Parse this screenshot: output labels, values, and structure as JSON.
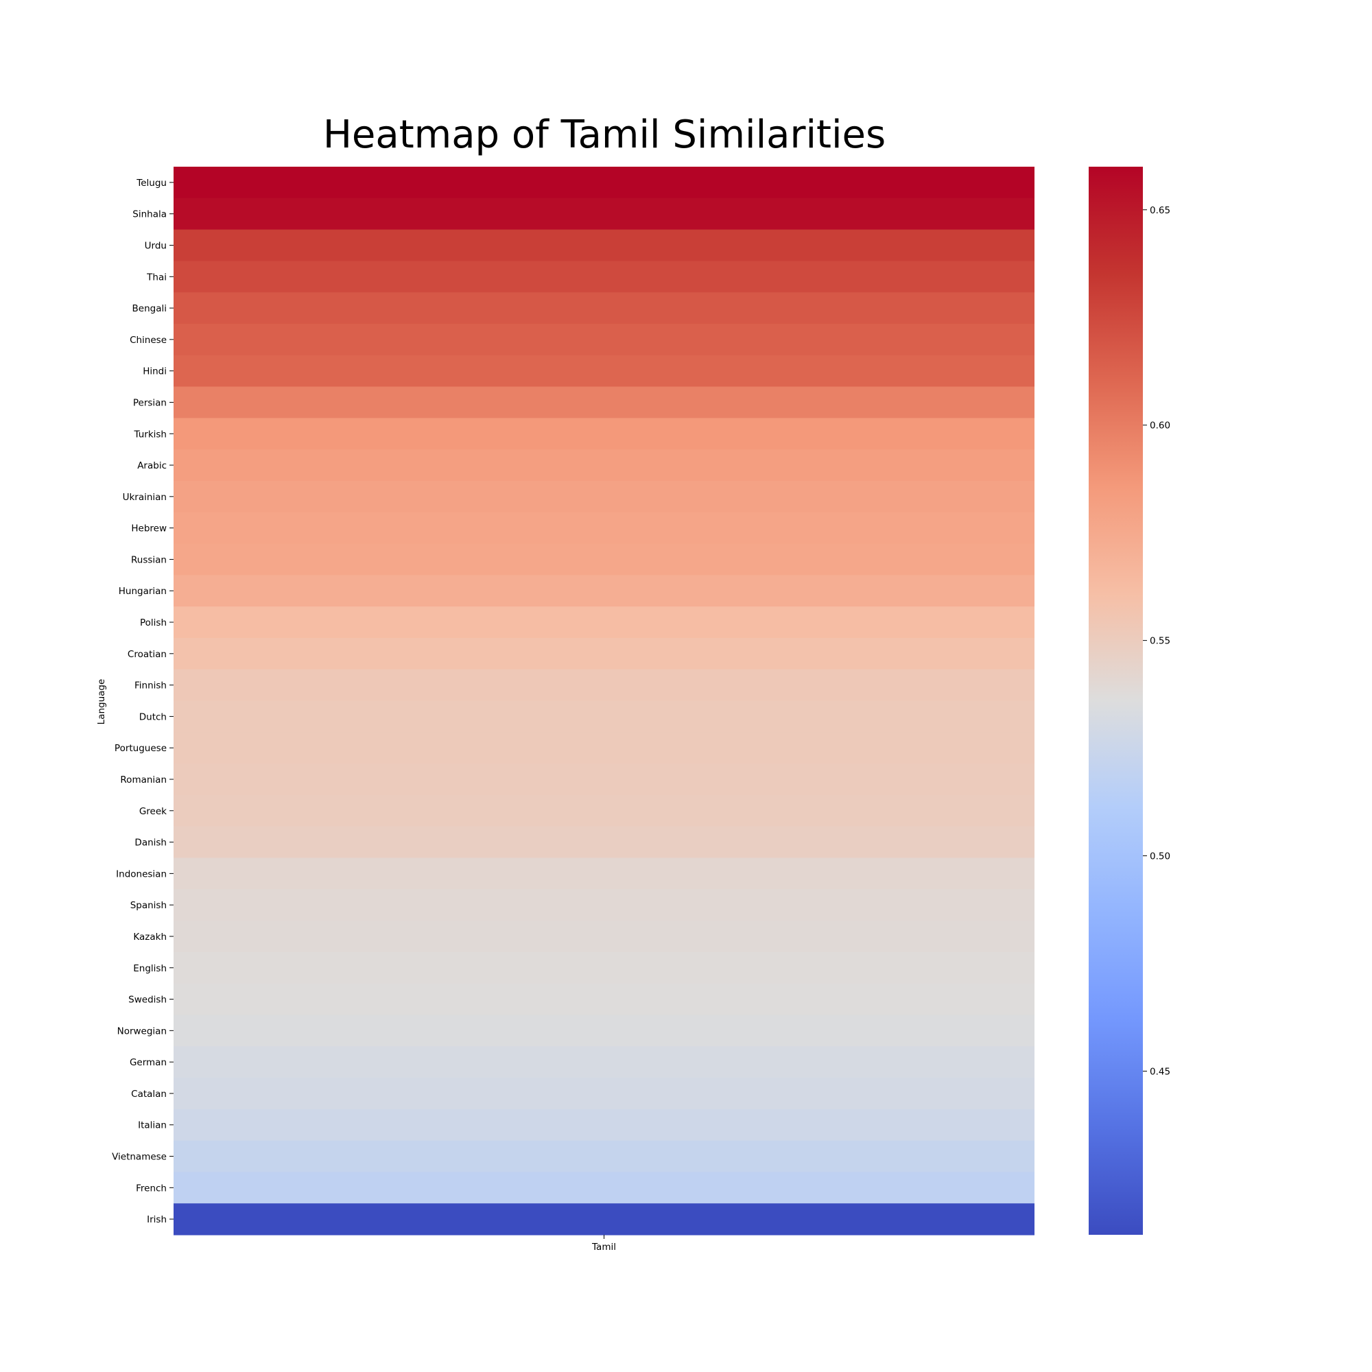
{
  "chart_data": {
    "type": "heatmap",
    "title": "Heatmap of Tamil Similarities",
    "xlabel": "",
    "ylabel": "Language",
    "columns": [
      "Tamil"
    ],
    "rows": [
      "Telugu",
      "Sinhala",
      "Urdu",
      "Thai",
      "Bengali",
      "Chinese",
      "Hindi",
      "Persian",
      "Turkish",
      "Arabic",
      "Ukrainian",
      "Hebrew",
      "Russian",
      "Hungarian",
      "Polish",
      "Croatian",
      "Finnish",
      "Dutch",
      "Portuguese",
      "Romanian",
      "Greek",
      "Danish",
      "Indonesian",
      "Spanish",
      "Kazakh",
      "English",
      "Swedish",
      "Norwegian",
      "German",
      "Catalan",
      "Italian",
      "Vietnamese",
      "French",
      "Irish"
    ],
    "values": [
      0.66,
      0.656,
      0.63,
      0.625,
      0.618,
      0.614,
      0.611,
      0.598,
      0.586,
      0.583,
      0.58,
      0.578,
      0.577,
      0.572,
      0.562,
      0.558,
      0.553,
      0.552,
      0.552,
      0.551,
      0.55,
      0.548,
      0.542,
      0.54,
      0.539,
      0.538,
      0.537,
      0.535,
      0.532,
      0.53,
      0.527,
      0.522,
      0.518,
      0.412
    ],
    "colormap": "coolwarm",
    "vmin": 0.412,
    "vmax": 0.66,
    "colorbar_ticks": [
      0.45,
      0.5,
      0.55,
      0.6,
      0.65
    ],
    "colorbar_tick_labels": [
      "0.45",
      "0.50",
      "0.55",
      "0.60",
      "0.65"
    ]
  }
}
